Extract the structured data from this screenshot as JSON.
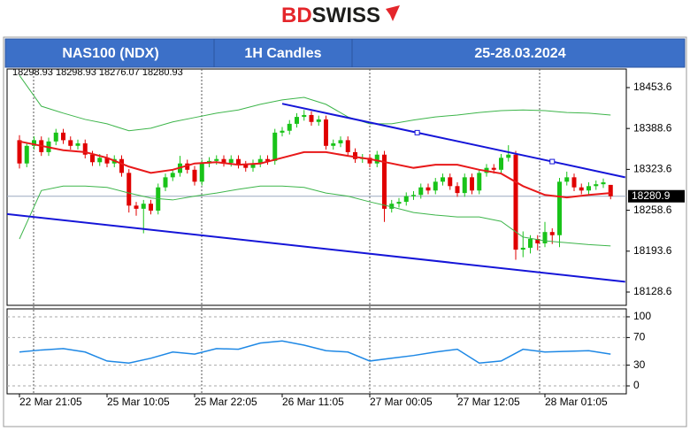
{
  "header": {
    "logo_bd": "BD",
    "logo_swiss": "SWISS",
    "symbol": "NAS100 (NDX)",
    "timeframe": "1H Candles",
    "dates": "25-28.03.2024"
  },
  "chart_data": [
    {
      "type": "candlestick",
      "categories": [
        "22 Mar 21:05",
        null,
        null,
        null,
        null,
        null,
        null,
        null,
        null,
        null,
        null,
        null,
        "25 Mar 10:05",
        null,
        null,
        null,
        null,
        null,
        null,
        null,
        null,
        null,
        null,
        null,
        "25 Mar 22:05",
        null,
        null,
        null,
        null,
        null,
        null,
        null,
        null,
        null,
        null,
        null,
        "26 Mar 11:05",
        null,
        null,
        null,
        null,
        null,
        null,
        null,
        null,
        null,
        null,
        null,
        "27 Mar 00:05",
        null,
        null,
        null,
        null,
        null,
        null,
        null,
        null,
        null,
        null,
        null,
        "27 Mar 12:05",
        null,
        null,
        null,
        null,
        null,
        null,
        null,
        null,
        null,
        null,
        null,
        "28 Mar 01:05",
        null,
        null,
        null,
        null,
        null,
        null,
        null,
        null,
        null
      ],
      "ohlc": [
        [
          18370,
          18378,
          18325,
          18333
        ],
        [
          18333,
          18367,
          18327,
          18361
        ],
        [
          18361,
          18376,
          18355,
          18370
        ],
        [
          18370,
          18376,
          18345,
          18351
        ],
        [
          18351,
          18374,
          18345,
          18368
        ],
        [
          18368,
          18388,
          18362,
          18382
        ],
        [
          18382,
          18388,
          18364,
          18370
        ],
        [
          18370,
          18376,
          18355,
          18361
        ],
        [
          18361,
          18371,
          18355,
          18365
        ],
        [
          18365,
          18371,
          18341,
          18347
        ],
        [
          18347,
          18353,
          18329,
          18335
        ],
        [
          18335,
          18348,
          18329,
          18342
        ],
        [
          18342,
          18348,
          18327,
          18333
        ],
        [
          18333,
          18346,
          18327,
          18340
        ],
        [
          18340,
          18346,
          18312,
          18318
        ],
        [
          18318,
          18324,
          18255,
          18266
        ],
        [
          18266,
          18272,
          18250,
          18261
        ],
        [
          18261,
          18275,
          18222,
          18269
        ],
        [
          18269,
          18275,
          18252,
          18258
        ],
        [
          18258,
          18301,
          18252,
          18295
        ],
        [
          18295,
          18317,
          18289,
          18311
        ],
        [
          18311,
          18324,
          18305,
          18318
        ],
        [
          18318,
          18345,
          18312,
          18333
        ],
        [
          18333,
          18339,
          18317,
          18323
        ],
        [
          18323,
          18329,
          18298,
          18304
        ],
        [
          18304,
          18339,
          18298,
          18333
        ],
        [
          18333,
          18343,
          18327,
          18337
        ],
        [
          18337,
          18346,
          18331,
          18340
        ],
        [
          18340,
          18346,
          18328,
          18334
        ],
        [
          18334,
          18346,
          18328,
          18340
        ],
        [
          18340,
          18346,
          18325,
          18331
        ],
        [
          18331,
          18337,
          18320,
          18326
        ],
        [
          18326,
          18339,
          18320,
          18333
        ],
        [
          18333,
          18346,
          18327,
          18340
        ],
        [
          18340,
          18346,
          18331,
          18337
        ],
        [
          18337,
          18388,
          18331,
          18382
        ],
        [
          18382,
          18391,
          18376,
          18385
        ],
        [
          18385,
          18402,
          18379,
          18396
        ],
        [
          18396,
          18413,
          18390,
          18407
        ],
        [
          18407,
          18418,
          18401,
          18410
        ],
        [
          18410,
          18416,
          18393,
          18399
        ],
        [
          18399,
          18409,
          18393,
          18403
        ],
        [
          18403,
          18409,
          18355,
          18361
        ],
        [
          18361,
          18371,
          18355,
          18365
        ],
        [
          18365,
          18376,
          18359,
          18370
        ],
        [
          18370,
          18376,
          18345,
          18351
        ],
        [
          18351,
          18357,
          18334,
          18340
        ],
        [
          18340,
          18348,
          18334,
          18342
        ],
        [
          18342,
          18348,
          18327,
          18333
        ],
        [
          18333,
          18353,
          18327,
          18347
        ],
        [
          18347,
          18353,
          18240,
          18261
        ],
        [
          18261,
          18275,
          18255,
          18269
        ],
        [
          18269,
          18278,
          18263,
          18272
        ],
        [
          18272,
          18287,
          18266,
          18281
        ],
        [
          18281,
          18289,
          18275,
          18283
        ],
        [
          18283,
          18301,
          18277,
          18295
        ],
        [
          18295,
          18301,
          18284,
          18290
        ],
        [
          18290,
          18310,
          18284,
          18304
        ],
        [
          18304,
          18317,
          18298,
          18311
        ],
        [
          18311,
          18317,
          18291,
          18297
        ],
        [
          18297,
          18303,
          18280,
          18286
        ],
        [
          18286,
          18317,
          18280,
          18311
        ],
        [
          18311,
          18317,
          18284,
          18290
        ],
        [
          18290,
          18324,
          18284,
          18318
        ],
        [
          18318,
          18332,
          18312,
          18326
        ],
        [
          18326,
          18332,
          18317,
          18323
        ],
        [
          18323,
          18348,
          18317,
          18342
        ],
        [
          18342,
          18362,
          18336,
          18347
        ],
        [
          18347,
          18353,
          18180,
          18196
        ],
        [
          18196,
          18225,
          18184,
          18199
        ],
        [
          18199,
          18219,
          18190,
          18213
        ],
        [
          18213,
          18219,
          18195,
          18206
        ],
        [
          18206,
          18240,
          18200,
          18224
        ],
        [
          18224,
          18230,
          18205,
          18219
        ],
        [
          18219,
          18310,
          18200,
          18304
        ],
        [
          18304,
          18320,
          18298,
          18311
        ],
        [
          18311,
          18317,
          18289,
          18295
        ],
        [
          18295,
          18301,
          18284,
          18290
        ],
        [
          18290,
          18303,
          18284,
          18297
        ],
        [
          18297,
          18306,
          18291,
          18300
        ],
        [
          18300,
          18309,
          18294,
          18303
        ],
        [
          18298.93,
          18298.93,
          18276.07,
          18280.93
        ]
      ],
      "up_color": "#19c319",
      "down_color": "#e00000",
      "ylim": [
        18107.5,
        18483.1
      ],
      "yticks": [
        18453.6,
        18388.6,
        18323.6,
        18258.6,
        18193.6,
        18128.6
      ],
      "current_price": 18280.9,
      "lines": [
        {
          "color": "#e8191a",
          "width": 2,
          "x": [
            0,
            3,
            6,
            9,
            12,
            15,
            18,
            21,
            24,
            27,
            30,
            33,
            36,
            39,
            42,
            45,
            48,
            51,
            54,
            57,
            60,
            63,
            66,
            69,
            72,
            75,
            78,
            81
          ],
          "values": [
            18368,
            18361,
            18354,
            18351,
            18342,
            18328,
            18318,
            18323,
            18333,
            18335,
            18331,
            18333,
            18342,
            18351,
            18351,
            18345,
            18340,
            18333,
            18326,
            18331,
            18331,
            18323,
            18317,
            18297,
            18283,
            18279,
            18283,
            18286
          ]
        },
        {
          "color": "#3db54a",
          "width": 1,
          "x": [
            0,
            3,
            6,
            9,
            12,
            15,
            18,
            21,
            24,
            27,
            30,
            33,
            36,
            39,
            42,
            45,
            48,
            51,
            54,
            57,
            60,
            63,
            66,
            69,
            72,
            75,
            78,
            81
          ],
          "values": [
            18473,
            18424,
            18413,
            18403,
            18396,
            18385,
            18389,
            18399,
            18406,
            18413,
            18418,
            18427,
            18434,
            18438,
            18427,
            18407,
            18396,
            18396,
            18402,
            18407,
            18410,
            18414,
            18417,
            18418,
            18417,
            18414,
            18413,
            18410
          ]
        },
        {
          "color": "#3db54a",
          "width": 1,
          "x": [
            0,
            3,
            6,
            9,
            12,
            15,
            18,
            21,
            24,
            27,
            30,
            33,
            36,
            39,
            42,
            45,
            48,
            51,
            54,
            57,
            60,
            63,
            66,
            69,
            72,
            75,
            78,
            81
          ],
          "values": [
            18213,
            18290,
            18297,
            18297,
            18295,
            18286,
            18278,
            18275,
            18281,
            18286,
            18292,
            18297,
            18297,
            18295,
            18286,
            18281,
            18272,
            18264,
            18255,
            18251,
            18248,
            18248,
            18241,
            18216,
            18210,
            18207,
            18204,
            18202
          ]
        },
        {
          "color": "#1515d8",
          "width": 2,
          "markers": true,
          "x": [
            36,
            54.5,
            73,
            83
          ],
          "values": [
            18428,
            18382,
            18336,
            18311
          ]
        },
        {
          "color": "#1515d8",
          "width": 2,
          "x": [
            -2,
            83
          ],
          "values": [
            18253,
            18145
          ]
        }
      ]
    },
    {
      "type": "line",
      "color": "#1e88e5",
      "grid": true,
      "x": [
        0,
        3,
        6,
        9,
        12,
        15,
        18,
        21,
        24,
        27,
        30,
        33,
        36,
        39,
        42,
        45,
        48,
        51,
        54,
        57,
        60,
        63,
        66,
        69,
        72,
        75,
        78,
        81
      ],
      "values": [
        49,
        52,
        54,
        49,
        36,
        33,
        40,
        49,
        46,
        54,
        53,
        62,
        65,
        59,
        51,
        49,
        36,
        40,
        44,
        49,
        53,
        33,
        36,
        53,
        49,
        50,
        51,
        46
      ],
      "ylim": [
        -11.5,
        111.5
      ],
      "yticks": [
        100,
        70,
        30,
        0
      ]
    }
  ]
}
